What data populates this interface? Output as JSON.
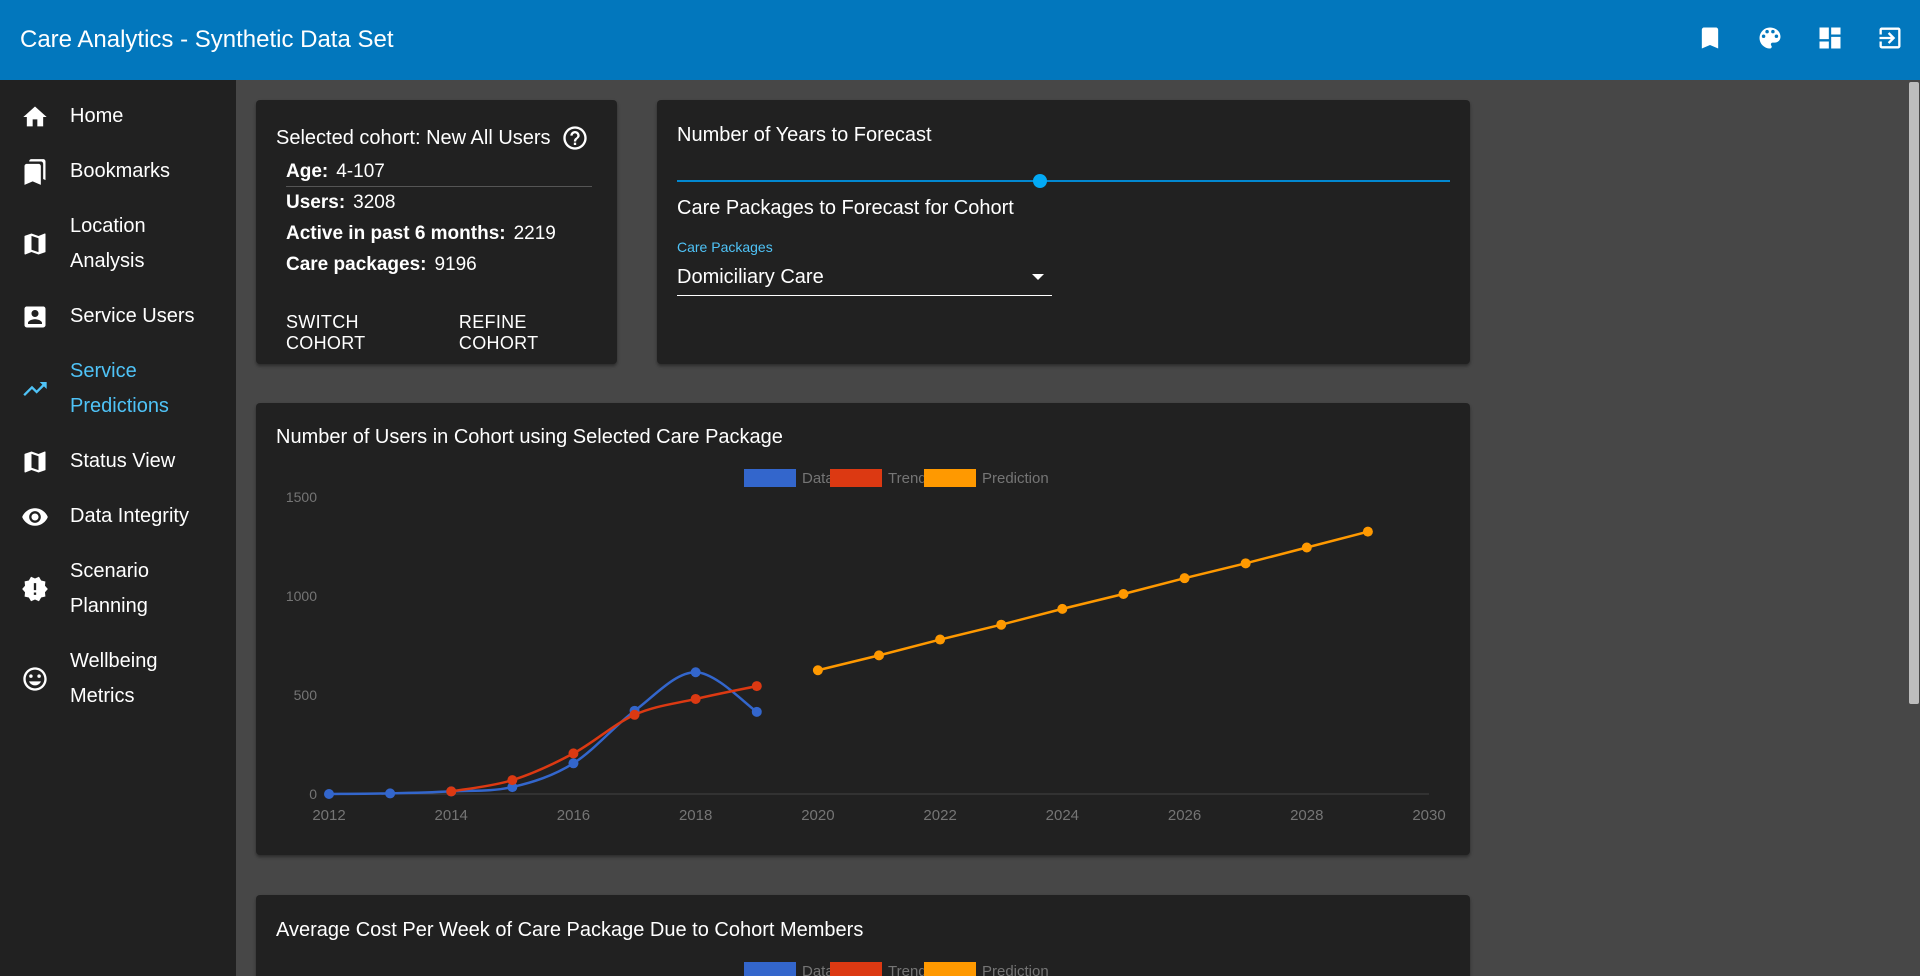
{
  "app": {
    "title": "Care Analytics - Synthetic Data Set"
  },
  "appbar_actions": [
    "bookmark-icon",
    "palette-icon",
    "dashboard-icon",
    "logout-icon"
  ],
  "sidebar": {
    "items": [
      {
        "label": "Home",
        "icon": "home-icon",
        "active": false
      },
      {
        "label": "Bookmarks",
        "icon": "bookmarks-icon",
        "active": false
      },
      {
        "label": "Location Analysis",
        "icon": "map-icon",
        "active": false
      },
      {
        "label": "Service Users",
        "icon": "account-box-icon",
        "active": false
      },
      {
        "label": "Service Predictions",
        "icon": "trending-up-icon",
        "active": true
      },
      {
        "label": "Status View",
        "icon": "map-icon",
        "active": false
      },
      {
        "label": "Data Integrity",
        "icon": "eye-icon",
        "active": false
      },
      {
        "label": "Scenario Planning",
        "icon": "alert-badge-icon",
        "active": false
      },
      {
        "label": "Wellbeing Metrics",
        "icon": "smiley-icon",
        "active": false
      }
    ]
  },
  "cohort": {
    "title": "Selected cohort: New All Users",
    "age_label": "Age:",
    "age_value": "4-107",
    "users_label": "Users:",
    "users_value": "3208",
    "active_label": "Active in past 6 months:",
    "active_value": "2219",
    "packages_label": "Care packages:",
    "packages_value": "9196",
    "switch_label": "SWITCH COHORT",
    "refine_label": "REFINE COHORT"
  },
  "forecast": {
    "years_label": "Number of Years to Forecast",
    "slider_value": 0.47,
    "packages_heading": "Care Packages to Forecast for Cohort",
    "select_label": "Care Packages",
    "select_value": "Domiciliary Care"
  },
  "colors": {
    "accent": "#4fc3f7",
    "appbar": "#0277bd",
    "data": "#3366cc",
    "trend": "#dc3912",
    "prediction": "#ff9900"
  },
  "chart_data": {
    "type": "line",
    "title": "Number of Users in Cohort using Selected Care Package",
    "legend": [
      "Data",
      "Trend",
      "Prediction"
    ],
    "legend_position": "top",
    "xlim": [
      2012,
      2030
    ],
    "ylim": [
      0,
      1500
    ],
    "xticks": [
      "2012",
      "2014",
      "2016",
      "2018",
      "2020",
      "2022",
      "2024",
      "2026",
      "2028",
      "2030"
    ],
    "yticks": [
      "0",
      "500",
      "1000",
      "1500"
    ],
    "series": [
      {
        "name": "Data",
        "color": "#3366cc",
        "x": [
          2012,
          2013,
          2014,
          2015,
          2016,
          2017,
          2018,
          2019
        ],
        "y": [
          0,
          3,
          13,
          35,
          155,
          420,
          615,
          415
        ]
      },
      {
        "name": "Trend",
        "color": "#dc3912",
        "x": [
          2014,
          2015,
          2016,
          2017,
          2018,
          2019
        ],
        "y": [
          13,
          70,
          205,
          400,
          480,
          545
        ]
      },
      {
        "name": "Prediction",
        "color": "#ff9900",
        "x": [
          2020,
          2021,
          2022,
          2023,
          2024,
          2025,
          2026,
          2027,
          2028,
          2029
        ],
        "y": [
          625,
          700,
          780,
          855,
          935,
          1010,
          1090,
          1165,
          1245,
          1325
        ]
      }
    ]
  },
  "cost_chart": {
    "title": "Average Cost Per Week of Care Package Due to Cohort Members",
    "legend": [
      "Data",
      "Trend",
      "Prediction"
    ]
  }
}
